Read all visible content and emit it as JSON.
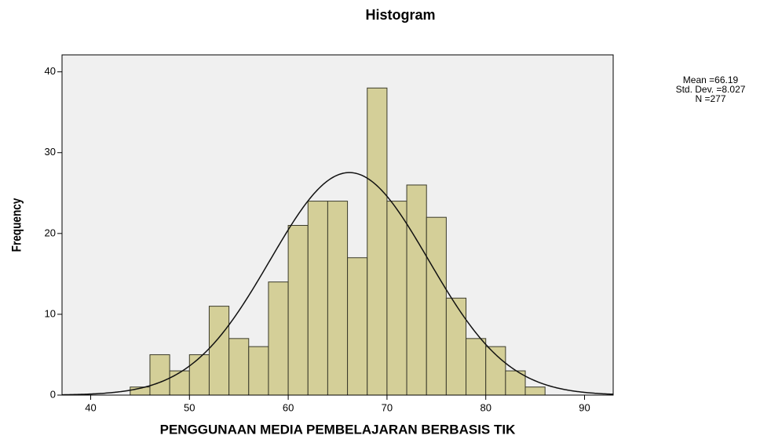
{
  "chart_data": {
    "type": "histogram",
    "title": "Histogram",
    "x_label": "PENGGUNAAN MEDIA PEMBELAJARAN BERBASIS TIK",
    "y_label": "Frequency",
    "bins": [
      44,
      46,
      48,
      50,
      52,
      54,
      56,
      58,
      60,
      62,
      64,
      66,
      68,
      70,
      72,
      74,
      76,
      78,
      80,
      82,
      84,
      86
    ],
    "counts": [
      1,
      5,
      3,
      5,
      11,
      7,
      6,
      14,
      21,
      24,
      24,
      17,
      38,
      24,
      26,
      22,
      12,
      7,
      6,
      3,
      1
    ],
    "color": "#d4cf98",
    "xlim": [
      37.1,
      92.9
    ],
    "ylim": [
      0,
      42.1
    ],
    "xticks": [
      40,
      50,
      60,
      70,
      80,
      90
    ],
    "yticks": [
      0,
      10,
      20,
      30,
      40
    ],
    "stats": [
      {
        "value": 66.19,
        "label": "Mean =66.19"
      },
      {
        "value": 8.027,
        "label": "Std. Dev. =8.027"
      },
      {
        "value": 277,
        "label": "N =277"
      }
    ]
  }
}
